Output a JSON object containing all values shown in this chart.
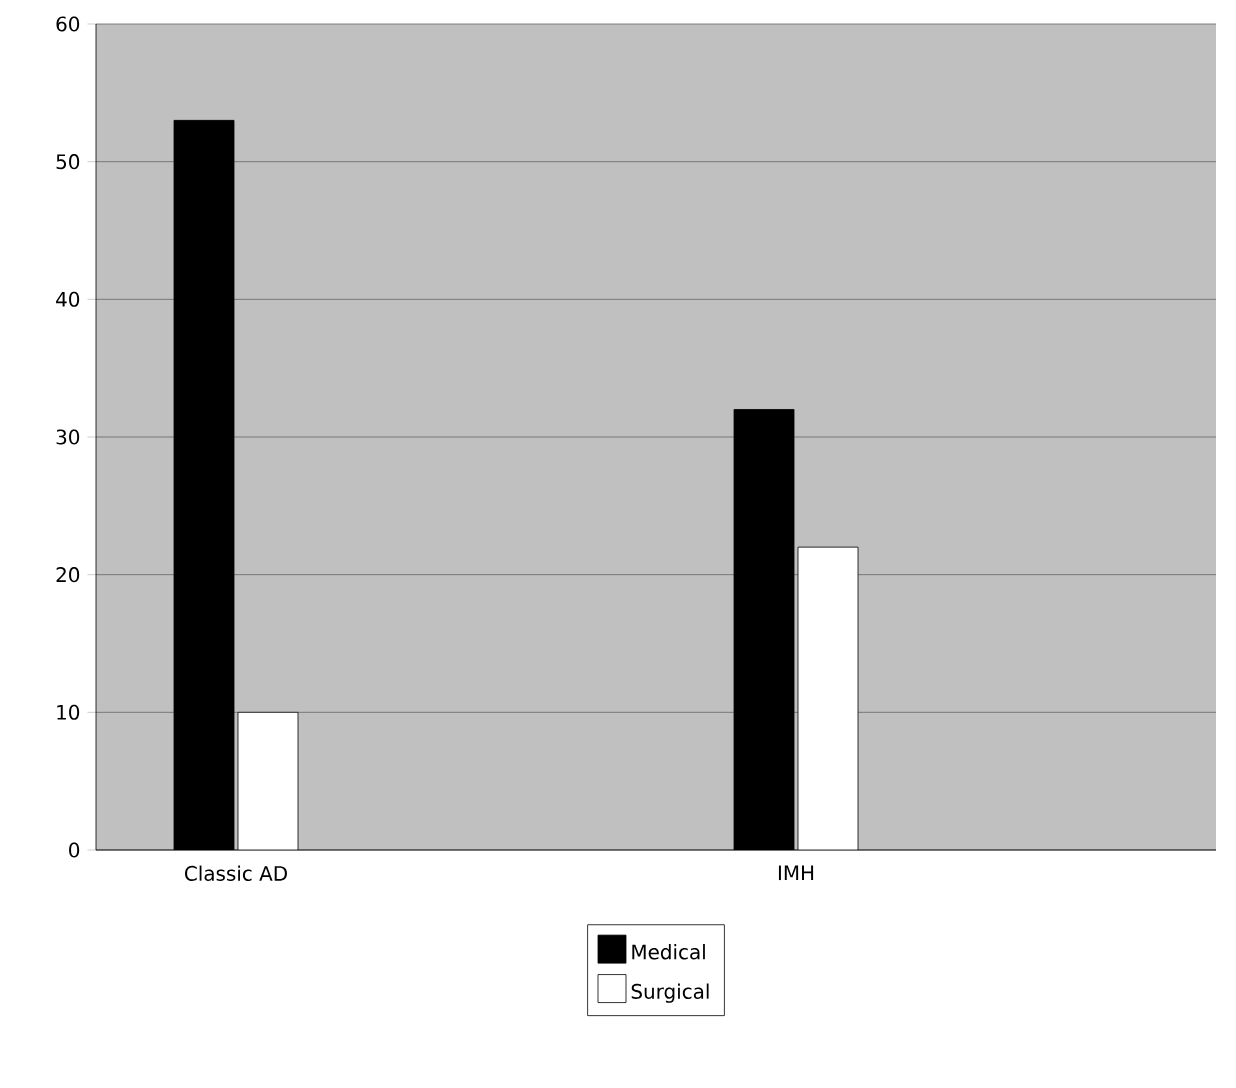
{
  "chart_data": {
    "type": "bar",
    "categories": [
      "Classic AD",
      null,
      "IMH",
      null
    ],
    "series": [
      {
        "name": "Medical",
        "color": "#000000",
        "values": [
          53,
          null,
          32,
          null
        ]
      },
      {
        "name": "Surgical",
        "color": "#ffffff",
        "values": [
          10,
          null,
          22,
          null
        ]
      }
    ],
    "ylim": [
      0,
      60
    ],
    "yticks": [
      0,
      10,
      20,
      30,
      40,
      50,
      60
    ],
    "grid": "y",
    "legend": "bottom"
  }
}
